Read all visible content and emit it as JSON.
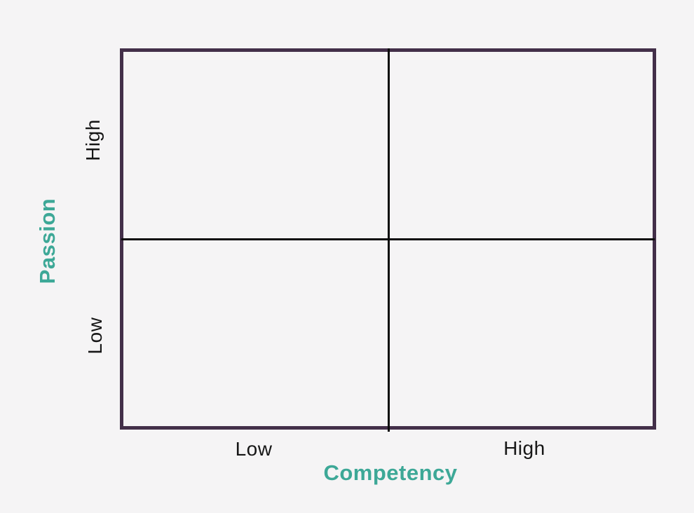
{
  "diagram": {
    "type": "2x2-matrix",
    "y_axis": {
      "title": "Passion",
      "top_label": "High",
      "bottom_label": "Low"
    },
    "x_axis": {
      "title": "Competency",
      "left_label": "Low",
      "right_label": "High"
    },
    "quadrants": [
      {
        "position": "top-left",
        "passion": "High",
        "competency": "Low"
      },
      {
        "position": "top-right",
        "passion": "High",
        "competency": "High"
      },
      {
        "position": "bottom-left",
        "passion": "Low",
        "competency": "Low"
      },
      {
        "position": "bottom-right",
        "passion": "Low",
        "competency": "High"
      }
    ],
    "colors": {
      "axis_title": "#3da897",
      "tick_label": "#161616",
      "matrix_border": "#432f49",
      "divider": "#0c0c0c",
      "background": "#f5f4f5"
    }
  }
}
